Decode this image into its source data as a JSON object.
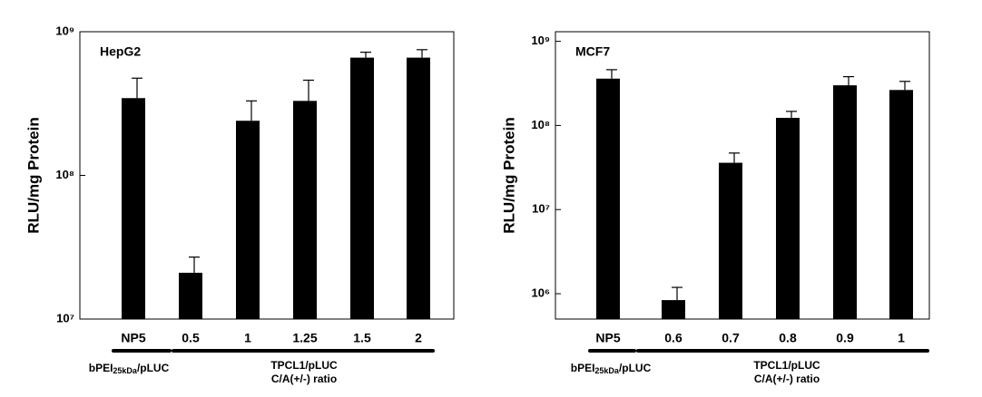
{
  "chart_data": [
    {
      "type": "bar",
      "title": "HepG2",
      "y_label": "RLU/mg Protein",
      "log_scale": true,
      "color": "#000000",
      "categories": [
        "NP5",
        "0.5",
        "1",
        "1.25",
        "1.5",
        "2"
      ],
      "values": [
        345000000,
        21000000,
        240000000,
        330000000,
        660000000,
        660000000
      ],
      "errors": [
        130000000,
        6000000,
        90000000,
        130000000,
        60000000,
        90000000
      ],
      "ylim": [
        10000000,
        1000000000
      ],
      "yticks": [
        {
          "value": 10000000,
          "label": "10⁷"
        },
        {
          "value": 100000000,
          "label": "10⁸"
        },
        {
          "value": 1000000000,
          "label": "10⁹"
        }
      ],
      "group_labels": [
        {
          "text": "bPEI",
          "sub": "25kDa",
          "after": "/pLUC"
        },
        {
          "lines": [
            "TPCL1/pLUC",
            "C/A(+/-) ratio"
          ]
        }
      ]
    },
    {
      "type": "bar",
      "title": "MCF7",
      "y_label": "RLU/mg Protein",
      "log_scale": true,
      "color": "#000000",
      "categories": [
        "NP5",
        "0.6",
        "0.7",
        "0.8",
        "0.9",
        "1"
      ],
      "values": [
        360000000,
        840000,
        36000000,
        123000000,
        300000000,
        264000000
      ],
      "errors": [
        100000000,
        350000,
        11000000,
        24000000,
        80000000,
        70000000
      ],
      "ylim": [
        500000,
        1300000000
      ],
      "yticks": [
        {
          "value": 1000000,
          "label": "10⁶"
        },
        {
          "value": 10000000,
          "label": "10⁷"
        },
        {
          "value": 100000000,
          "label": "10⁸"
        },
        {
          "value": 1000000000,
          "label": "10⁹"
        }
      ],
      "group_labels": [
        {
          "text": "bPEI",
          "sub": "25kDa",
          "after": "/pLUC"
        },
        {
          "lines": [
            "TPCL1/pLUC",
            "C/A(+/-) ratio"
          ]
        }
      ]
    }
  ]
}
